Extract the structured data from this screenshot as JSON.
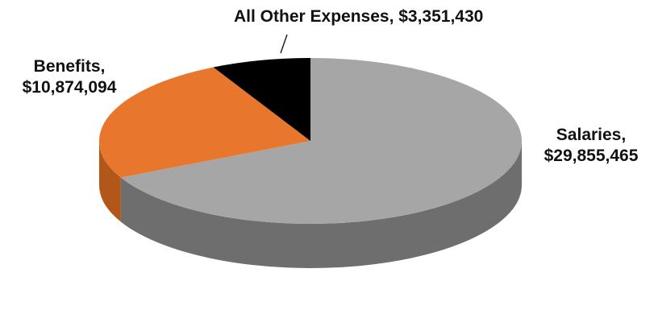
{
  "chart_data": {
    "type": "pie",
    "style": "3d",
    "title": "",
    "slices": [
      {
        "name": "Salaries",
        "value": 29855465,
        "label_line1": "Salaries,",
        "label_line2": "$29,855,465",
        "color": "#a6a6a6",
        "side_color": "#6e6e6e"
      },
      {
        "name": "Benefits",
        "value": 10874094,
        "label_line1": "Benefits,",
        "label_line2": "$10,874,094",
        "color": "#e8762d",
        "side_color": "#b3561a"
      },
      {
        "name": "All Other Expenses",
        "value": 3351430,
        "label_line1": "All Other Expenses, $3,351,430",
        "label_line2": "",
        "color": "#000000",
        "side_color": "#000000"
      }
    ]
  }
}
